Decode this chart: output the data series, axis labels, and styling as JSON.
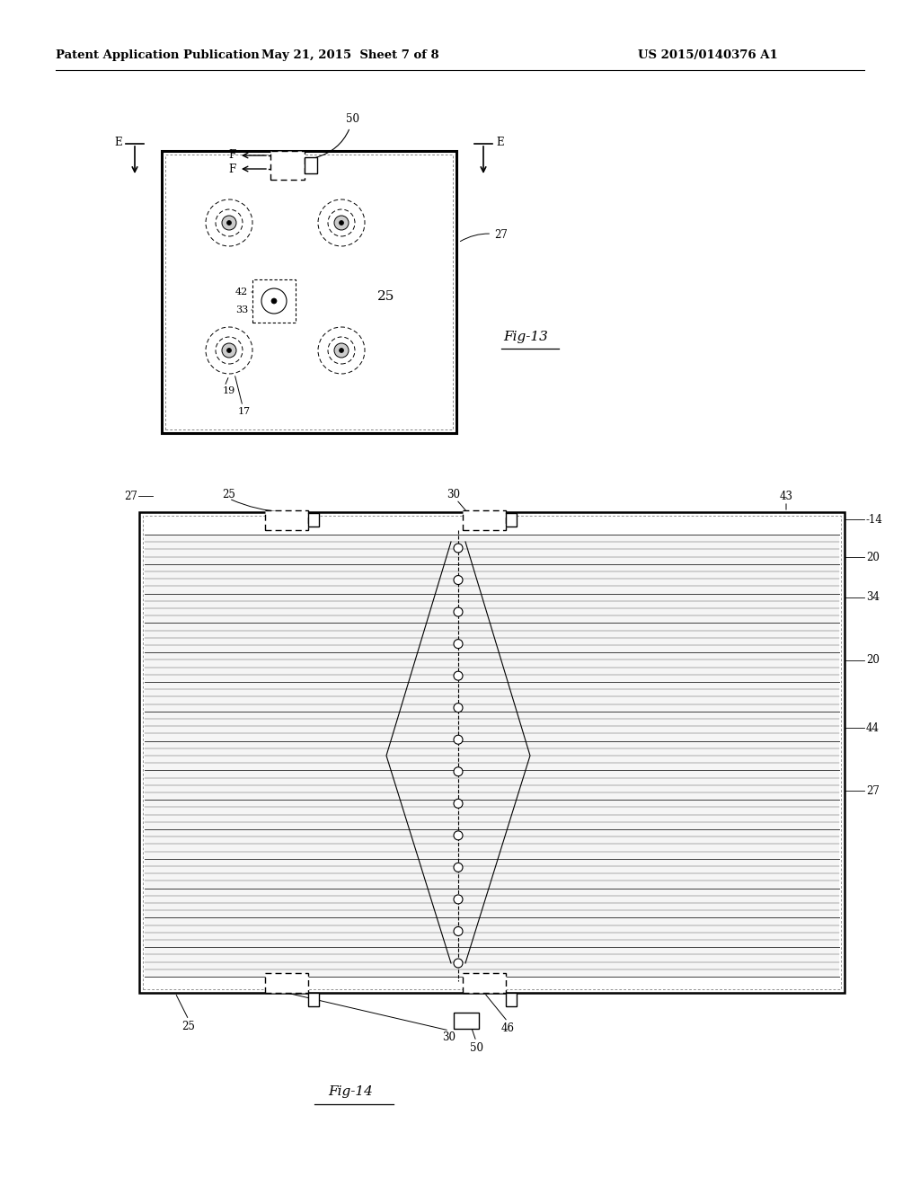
{
  "bg_color": "#ffffff",
  "header_text_left": "Patent Application Publication",
  "header_text_mid": "May 21, 2015  Sheet 7 of 8",
  "header_text_right": "US 2015/0140376 A1",
  "fig13_label": "Fig-13",
  "fig14_label": "Fig-14"
}
